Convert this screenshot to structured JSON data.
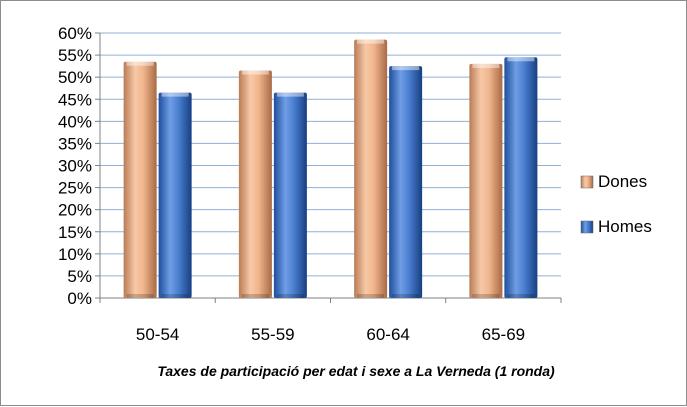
{
  "chart_data": {
    "type": "bar",
    "title": "",
    "xlabel": "Taxes de participació per edat i sexe  a La Verneda (1 ronda)",
    "ylabel": "",
    "ylim": [
      0,
      60
    ],
    "y_tick_step": 5,
    "y_tick_format": "percent",
    "grid": true,
    "legend_position": "right",
    "categories": [
      "50-54",
      "55-59",
      "60-64",
      "65-69"
    ],
    "series": [
      {
        "name": "Dones",
        "values": [
          53.5,
          51.5,
          58.5,
          53.0
        ],
        "color": "#f2b48c"
      },
      {
        "name": "Homes",
        "values": [
          46.5,
          46.5,
          52.5,
          54.5
        ],
        "color": "#4a7fd0"
      }
    ]
  }
}
